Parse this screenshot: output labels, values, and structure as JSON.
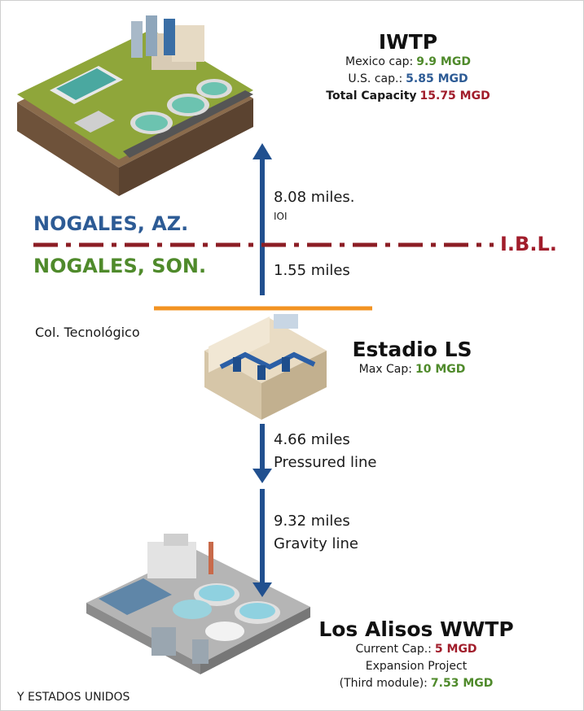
{
  "iwtp": {
    "title": "IWTP",
    "mexico_label": "Mexico cap:",
    "mexico_value": "9.9 MGD",
    "us_label": "U.S. cap.:",
    "us_value": "5.85 MGD",
    "total_label": "Total Capacity",
    "total_value": "15.75 MGD"
  },
  "segment_upper": {
    "distance": "8.08 miles.",
    "symbol": "IOI"
  },
  "border": {
    "north": "NOGALES, AZ.",
    "south": "NOGALES, SON.",
    "line_label": "I.B.L."
  },
  "segment_lower": {
    "distance": "1.55 miles"
  },
  "neighborhood": "Col. Tecnológico",
  "estadio": {
    "title": "Estadio LS",
    "cap_label": "Max Cap:",
    "cap_value": "10 MGD"
  },
  "pressured": {
    "distance": "4.66 miles",
    "type": "Pressured line"
  },
  "gravity": {
    "distance": "9.32 miles",
    "type": "Gravity line"
  },
  "alisos": {
    "title": "Los Alisos WWTP",
    "current_label": "Current Cap.:",
    "current_value": "5 MGD",
    "expansion": "Expansion Project",
    "module_label": "(Third module):",
    "module_value": "7.53 MGD"
  },
  "footer": "Y ESTADOS UNIDOS"
}
